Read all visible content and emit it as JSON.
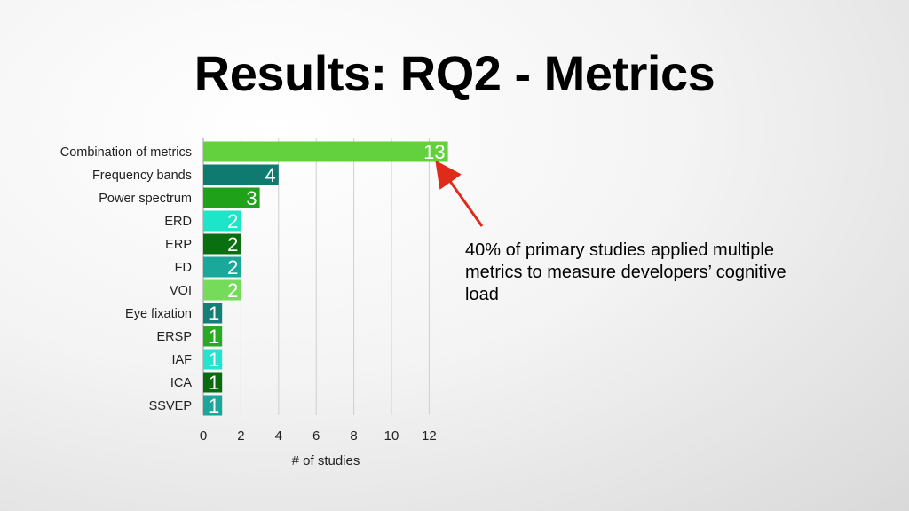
{
  "slide": {
    "title": "Results: RQ2 - Metrics",
    "annotation": "40% of primary studies applied multiple metrics to measure developers’ cognitive load"
  },
  "chart_data": {
    "type": "bar",
    "orientation": "horizontal",
    "categories": [
      "Combination of metrics",
      "Frequency bands",
      "Power spectrum",
      "ERD",
      "ERP",
      "FD",
      "VOI",
      "Eye fixation",
      "ERSP",
      "IAF",
      "ICA",
      "SSVEP"
    ],
    "values": [
      13,
      4,
      3,
      2,
      2,
      2,
      2,
      1,
      1,
      1,
      1,
      1
    ],
    "colors": [
      "#63d13e",
      "#0f7a6f",
      "#1fa21a",
      "#1de6c8",
      "#0a6f10",
      "#19a89a",
      "#74dc5a",
      "#137f77",
      "#2aa924",
      "#27e2cc",
      "#0a6a10",
      "#1ea59a"
    ],
    "xticks": [
      0,
      2,
      4,
      6,
      8,
      10,
      12
    ],
    "xlim": [
      0,
      13
    ],
    "xlabel": "# of studies",
    "ylabel": "",
    "data_labels": true,
    "grid": "vertical",
    "annotation_arrow_target": "Combination of metrics"
  }
}
